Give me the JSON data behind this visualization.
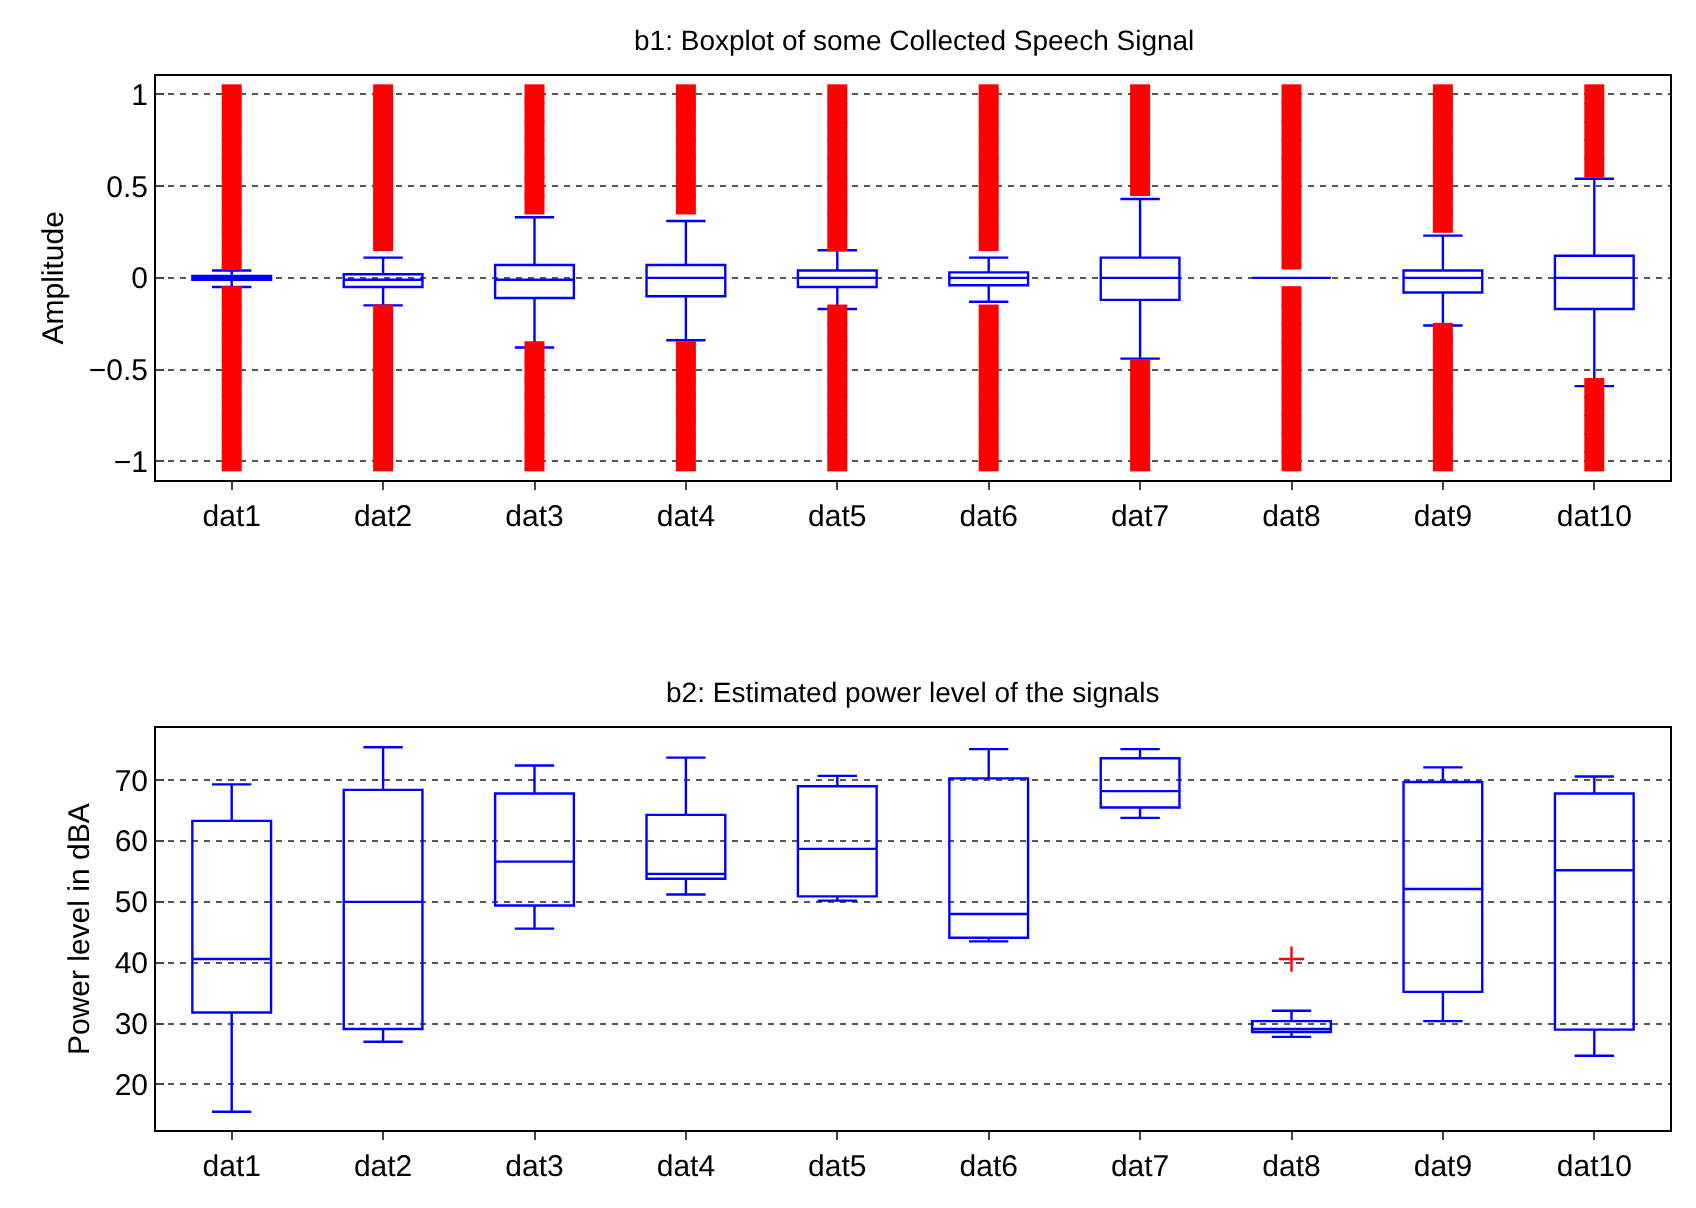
{
  "chart_data": [
    {
      "type": "box",
      "title": "b1: Boxplot of some Collected Speech Signal",
      "ylabel": "Amplitude",
      "categories": [
        "dat1",
        "dat2",
        "dat3",
        "dat4",
        "dat5",
        "dat6",
        "dat7",
        "dat8",
        "dat9",
        "dat10"
      ],
      "ylim": [
        -1.1,
        1.1
      ],
      "yticks": [
        -1,
        -0.5,
        0,
        0.5,
        1
      ],
      "grid": "y",
      "marker": "square",
      "series": [
        {
          "color": "#0000ff",
          "boxes": [
            {
              "low": -0.05,
              "q1": -0.01,
              "median": 0,
              "q3": 0.01,
              "high": 0.04,
              "outliers": [
                0.1,
                0.2,
                0.3,
                0.4,
                0.5,
                0.6,
                0.7,
                0.8,
                0.9,
                1,
                -0.1,
                -0.2,
                -0.3,
                -0.4,
                -0.5,
                -0.6,
                -0.7,
                -0.8,
                -0.9,
                -1
              ]
            },
            {
              "low": -0.15,
              "q1": -0.05,
              "median": -0.01,
              "q3": 0.02,
              "high": 0.11,
              "outliers": [
                0.2,
                0.3,
                0.4,
                0.5,
                0.6,
                0.7,
                0.8,
                0.9,
                1,
                -0.2,
                -0.3,
                -0.4,
                -0.5,
                -0.6,
                -0.7,
                -0.8,
                -0.9,
                -1
              ]
            },
            {
              "low": -0.38,
              "q1": -0.11,
              "median": -0.01,
              "q3": 0.07,
              "high": 0.33,
              "outliers": [
                0.4,
                0.5,
                0.6,
                0.7,
                0.8,
                0.9,
                1,
                -0.4,
                -0.5,
                -0.6,
                -0.7,
                -0.8,
                -0.9,
                -1
              ]
            },
            {
              "low": -0.34,
              "q1": -0.1,
              "median": 0,
              "q3": 0.07,
              "high": 0.31,
              "outliers": [
                0.4,
                0.5,
                0.6,
                0.7,
                0.8,
                0.9,
                1,
                -0.4,
                -0.5,
                -0.6,
                -0.7,
                -0.8,
                -0.9,
                -1
              ]
            },
            {
              "low": -0.17,
              "q1": -0.05,
              "median": 0,
              "q3": 0.04,
              "high": 0.15,
              "outliers": [
                0.2,
                0.3,
                0.4,
                0.5,
                0.6,
                0.7,
                0.8,
                0.9,
                1,
                -0.2,
                -0.3,
                -0.4,
                -0.5,
                -0.6,
                -0.7,
                -0.8,
                -0.9,
                -1
              ]
            },
            {
              "low": -0.13,
              "q1": -0.04,
              "median": 0,
              "q3": 0.03,
              "high": 0.11,
              "outliers": [
                0.2,
                0.3,
                0.4,
                0.5,
                0.6,
                0.7,
                0.8,
                0.9,
                1,
                -0.2,
                -0.3,
                -0.4,
                -0.5,
                -0.6,
                -0.7,
                -0.8,
                -0.9,
                -1
              ]
            },
            {
              "low": -0.44,
              "q1": -0.12,
              "median": 0,
              "q3": 0.11,
              "high": 0.43,
              "outliers": [
                0.5,
                0.6,
                0.7,
                0.8,
                0.9,
                1,
                -0.5,
                -0.6,
                -0.7,
                -0.8,
                -0.9,
                -1
              ]
            },
            {
              "low": 0,
              "q1": 0,
              "median": 0,
              "q3": 0,
              "high": 0,
              "outliers": [
                0.1,
                0.2,
                0.3,
                0.4,
                0.5,
                0.6,
                0.7,
                0.8,
                0.9,
                1,
                -0.1,
                -0.2,
                -0.3,
                -0.4,
                -0.5,
                -0.6,
                -0.7,
                -0.8,
                -0.9,
                -1
              ]
            },
            {
              "low": -0.26,
              "q1": -0.08,
              "median": 0,
              "q3": 0.04,
              "high": 0.23,
              "outliers": [
                0.3,
                0.4,
                0.5,
                0.6,
                0.7,
                0.8,
                0.9,
                1,
                -0.3,
                -0.4,
                -0.5,
                -0.6,
                -0.7,
                -0.8,
                -0.9,
                -1
              ]
            },
            {
              "low": -0.59,
              "q1": -0.17,
              "median": 0,
              "q3": 0.12,
              "high": 0.54,
              "outliers": [
                0.6,
                0.7,
                0.8,
                0.9,
                1,
                -0.6,
                -0.7,
                -0.8,
                -0.9,
                -1
              ]
            }
          ]
        }
      ]
    },
    {
      "type": "box",
      "title": "b2: Estimated power level of the signals",
      "ylabel": "Power level in dBA",
      "categories": [
        "dat1",
        "dat2",
        "dat3",
        "dat4",
        "dat5",
        "dat6",
        "dat7",
        "dat8",
        "dat9",
        "dat10"
      ],
      "ylim": [
        12.5,
        78.5
      ],
      "yticks": [
        20,
        30,
        40,
        50,
        60,
        70
      ],
      "grid": "y",
      "marker": "cross",
      "series": [
        {
          "color": "#0000ff",
          "boxes": [
            {
              "low": 15.5,
              "q1": 31.8,
              "median": 40.6,
              "q3": 63.3,
              "high": 69.3
            },
            {
              "low": 27,
              "q1": 29.1,
              "median": 50,
              "q3": 68.4,
              "high": 75.4
            },
            {
              "low": 45.6,
              "q1": 49.4,
              "median": 56.6,
              "q3": 67.8,
              "high": 72.4
            },
            {
              "low": 51.2,
              "q1": 53.8,
              "median": 54.6,
              "q3": 64.3,
              "high": 73.7
            },
            {
              "low": 50.2,
              "q1": 50.9,
              "median": 58.7,
              "q3": 69,
              "high": 70.7
            },
            {
              "low": 43.5,
              "q1": 44.1,
              "median": 48,
              "q3": 70.3,
              "high": 75.1
            },
            {
              "low": 63.8,
              "q1": 65.5,
              "median": 68.2,
              "q3": 73.6,
              "high": 75.1
            },
            {
              "low": 27.8,
              "q1": 28.6,
              "median": 29.1,
              "q3": 30.4,
              "high": 32.1,
              "outliers": [
                40.6
              ]
            },
            {
              "low": 30.4,
              "q1": 35.2,
              "median": 52.1,
              "q3": 69.7,
              "high": 72.1
            },
            {
              "low": 24.7,
              "q1": 29,
              "median": 55.2,
              "q3": 67.8,
              "high": 70.6
            }
          ]
        }
      ]
    }
  ]
}
